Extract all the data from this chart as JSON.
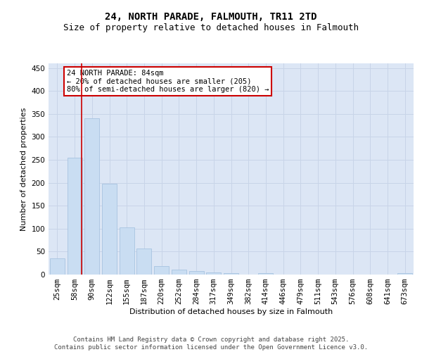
{
  "title": "24, NORTH PARADE, FALMOUTH, TR11 2TD",
  "subtitle": "Size of property relative to detached houses in Falmouth",
  "xlabel": "Distribution of detached houses by size in Falmouth",
  "ylabel": "Number of detached properties",
  "categories": [
    "25sqm",
    "58sqm",
    "90sqm",
    "122sqm",
    "155sqm",
    "187sqm",
    "220sqm",
    "252sqm",
    "284sqm",
    "317sqm",
    "349sqm",
    "382sqm",
    "414sqm",
    "446sqm",
    "479sqm",
    "511sqm",
    "543sqm",
    "576sqm",
    "608sqm",
    "641sqm",
    "673sqm"
  ],
  "values": [
    35,
    255,
    340,
    198,
    103,
    57,
    18,
    10,
    7,
    5,
    3,
    0,
    3,
    0,
    0,
    0,
    0,
    0,
    0,
    0,
    3
  ],
  "bar_color": "#c9ddf2",
  "bar_edge_color": "#a8c4e0",
  "grid_color": "#c8d4e8",
  "background_color": "#dce6f5",
  "vline_color": "#cc0000",
  "annotation_text": "24 NORTH PARADE: 84sqm\n← 20% of detached houses are smaller (205)\n80% of semi-detached houses are larger (820) →",
  "annotation_box_color": "#cc0000",
  "footer_text": "Contains HM Land Registry data © Crown copyright and database right 2025.\nContains public sector information licensed under the Open Government Licence v3.0.",
  "ylim": [
    0,
    460
  ],
  "yticks": [
    0,
    50,
    100,
    150,
    200,
    250,
    300,
    350,
    400,
    450
  ],
  "title_fontsize": 10,
  "subtitle_fontsize": 9,
  "label_fontsize": 8,
  "tick_fontsize": 7.5,
  "footer_fontsize": 6.5,
  "annot_fontsize": 7.5
}
